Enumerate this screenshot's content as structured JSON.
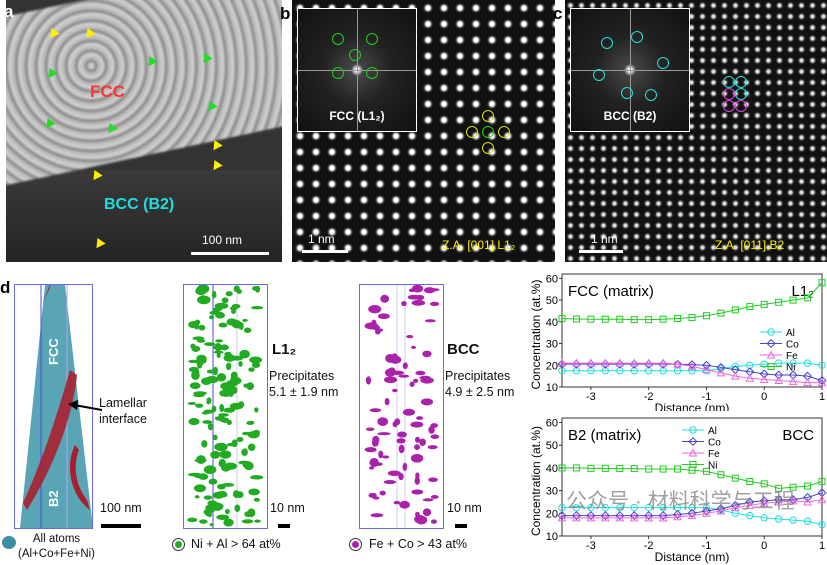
{
  "panels": {
    "a": {
      "label": "a",
      "fcc": "FCC",
      "bcc": "BCC (B2)",
      "scale": "100 nm"
    },
    "b": {
      "label": "b",
      "inset": "FCC (L1₂)",
      "scale": "1 nm",
      "zone_axis": "Z.A. [001] L1₂"
    },
    "c": {
      "label": "c",
      "inset": "BCC (B2)",
      "scale": "1 nm",
      "zone_axis": "Z.A. [011] B2"
    },
    "d": {
      "label": "d",
      "apt1": {
        "fcc": "FCC",
        "b2": "B2",
        "annotation": "Lamellar\ninterface",
        "scale": "100 nm",
        "legend": "All atoms\n(Al+Co+Fe+Ni)"
      },
      "apt2": {
        "phase": "L1₂",
        "desc": "Precipitates\n5.1 ± 1.9 nm",
        "scale": "10 nm",
        "legend": "Ni + Al > 64 at%"
      },
      "apt3": {
        "phase": "BCC",
        "desc": "Precipitates\n4.9 ± 2.5 nm",
        "scale": "10 nm",
        "legend": "Fe + Co > 43 at%"
      }
    }
  },
  "colors": {
    "Al": "#22dddd",
    "Co": "#4444cc",
    "Fe": "#ee66dd",
    "Ni": "#22cc22",
    "L12": "#22aa22",
    "BCC": "#aa22aa",
    "fcc_label": "#ff3333",
    "bcc_label": "#22dddd"
  },
  "watermark": "公众号 · 材料科学与工程",
  "chart_data": [
    {
      "type": "line",
      "title": "FCC (matrix)",
      "phase_label": "L1₂",
      "xlabel": "Distance (nm)",
      "ylabel": "Concentration (at.%)",
      "xlim": [
        -3.5,
        1
      ],
      "ylim": [
        10,
        62
      ],
      "xticks": [
        -3,
        -2,
        -1,
        0,
        1
      ],
      "yticks": [
        10,
        20,
        30,
        40,
        50,
        60
      ],
      "legend": "right-middle",
      "x": [
        -3.5,
        -3.25,
        -3,
        -2.75,
        -2.5,
        -2.25,
        -2,
        -1.75,
        -1.5,
        -1.25,
        -1,
        -0.75,
        -0.5,
        -0.25,
        0,
        0.25,
        0.5,
        0.75,
        1
      ],
      "series": [
        {
          "name": "Al",
          "marker": "circle",
          "values": [
            17.5,
            17.5,
            17.5,
            17.5,
            17.5,
            17.5,
            17.5,
            17.5,
            17.5,
            17.5,
            17.5,
            18.5,
            19.5,
            20,
            20.5,
            21,
            21,
            21,
            20
          ]
        },
        {
          "name": "Co",
          "marker": "diamond",
          "values": [
            20.5,
            20.5,
            20.5,
            20.5,
            20.5,
            20.5,
            20.5,
            20.5,
            20.5,
            20.3,
            20,
            19,
            18,
            17,
            16,
            15.5,
            15.5,
            15,
            13
          ]
        },
        {
          "name": "Fe",
          "marker": "triangle",
          "values": [
            21,
            21,
            21,
            21,
            21,
            21,
            21,
            21,
            20.5,
            19.5,
            18,
            16.5,
            15,
            14,
            13.5,
            13,
            12.5,
            12,
            12
          ]
        },
        {
          "name": "Ni",
          "marker": "square",
          "values": [
            41.5,
            41.3,
            41.2,
            41.2,
            41.2,
            41,
            41,
            41.2,
            41.5,
            42,
            42.8,
            44,
            45.5,
            47,
            48,
            49,
            50,
            51,
            58
          ]
        }
      ]
    },
    {
      "type": "line",
      "title": "B2 (matrix)",
      "phase_label": "BCC",
      "xlabel": "Distance (nm)",
      "ylabel": "Concentration (at.%)",
      "xlim": [
        -3.5,
        1
      ],
      "ylim": [
        10,
        62
      ],
      "xticks": [
        -3,
        -2,
        -1,
        0,
        1
      ],
      "yticks": [
        10,
        20,
        30,
        40,
        50,
        60
      ],
      "legend": "top-center",
      "x": [
        -3.5,
        -3.25,
        -3,
        -2.75,
        -2.5,
        -2.25,
        -2,
        -1.75,
        -1.5,
        -1.25,
        -1,
        -0.75,
        -0.5,
        -0.25,
        0,
        0.25,
        0.5,
        0.75,
        1
      ],
      "series": [
        {
          "name": "Al",
          "marker": "circle",
          "values": [
            22.5,
            22.5,
            22.5,
            22.5,
            22.5,
            22.5,
            22.5,
            22.5,
            22.5,
            22.5,
            22.5,
            21.5,
            20,
            19,
            18,
            17.5,
            17,
            16.5,
            15
          ]
        },
        {
          "name": "Co",
          "marker": "diamond",
          "values": [
            19,
            19,
            19,
            19,
            19,
            19,
            19,
            19,
            19.5,
            20,
            21,
            22,
            23.5,
            25,
            25.5,
            26,
            26,
            27,
            29
          ]
        },
        {
          "name": "Fe",
          "marker": "triangle",
          "values": [
            18,
            18,
            18,
            18,
            18,
            18,
            18,
            18,
            18.5,
            19,
            20,
            21,
            22.5,
            23.5,
            24.5,
            25,
            25.5,
            25,
            26
          ]
        },
        {
          "name": "Ni",
          "marker": "square",
          "values": [
            40,
            40,
            39.8,
            39.8,
            39.7,
            39.7,
            39.5,
            39.5,
            39.5,
            39,
            38.5,
            37,
            35.5,
            34,
            33,
            31,
            31.5,
            32,
            34
          ]
        }
      ]
    }
  ]
}
